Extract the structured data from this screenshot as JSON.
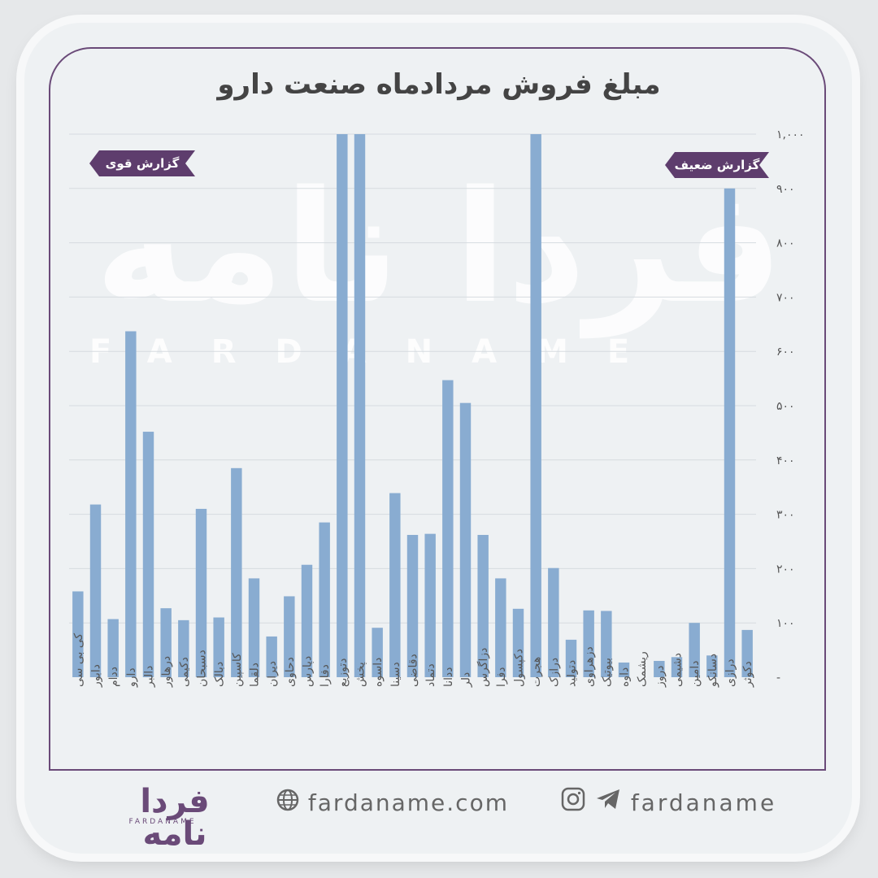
{
  "title": "مبلغ فروش مردادماه صنعت دارو",
  "watermark": "فردا نامه",
  "watermark_latin": "FARDANAME",
  "ribbons": {
    "strong": "گزارش قوی",
    "weak": "گزارش ضعیف"
  },
  "footer": {
    "logo": "فردا نامه",
    "logo_sub": "FARDANAME",
    "website": "fardaname.com",
    "handle": "fardaname",
    "icons": [
      "globe-icon",
      "instagram-icon",
      "telegram-icon"
    ]
  },
  "colors": {
    "bar": "#89acd1",
    "accent": "#5e3d6d",
    "text": "#444444"
  },
  "chart_data": {
    "type": "bar",
    "title": "مبلغ فروش مردادماه صنعت دارو",
    "ylim": [
      0,
      1000
    ],
    "y_ticks": [
      0,
      100,
      200,
      300,
      400,
      500,
      600,
      700,
      800,
      900,
      1000
    ],
    "y_tick_labels": [
      "-",
      "۱۰۰",
      "۲۰۰",
      "۳۰۰",
      "۴۰۰",
      "۵۰۰",
      "۶۰۰",
      "۷۰۰",
      "۸۰۰",
      "۹۰۰",
      "۱,۰۰۰"
    ],
    "grid": true,
    "categories": [
      "کی بی سی",
      "دابور",
      "ددام",
      "دارو",
      "دالبر",
      "درهاور",
      "دکیمی",
      "دسبحان",
      "دبالک",
      "کاسپین",
      "دلقما",
      "دیران",
      "دحاوی",
      "دپارس",
      "دفارا",
      "دتوزیع",
      "پخش",
      "داسوه",
      "دسینا",
      "دقاضی",
      "دتماد",
      "ددانا",
      "دلر",
      "دزاگرس",
      "دفرا",
      "دکپسول",
      "هجرت",
      "درازک",
      "دتولید",
      "دزهراوی",
      "بیوتیک",
      "داوه",
      "ریشمک",
      "دروز",
      "دشیمی",
      "دامین",
      "دسانکو",
      "درازی",
      "دکوثر"
    ],
    "values": [
      158,
      318,
      107,
      637,
      452,
      127,
      105,
      310,
      110,
      385,
      182,
      75,
      149,
      207,
      285,
      1000,
      1000,
      91,
      339,
      262,
      264,
      547,
      505,
      262,
      182,
      126,
      1000,
      201,
      69,
      123,
      122,
      27,
      0,
      30,
      37,
      100,
      40,
      900,
      87
    ]
  }
}
